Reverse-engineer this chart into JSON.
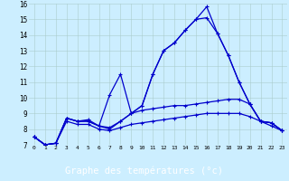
{
  "title": "Graphe des températures (°c)",
  "hours": [
    0,
    1,
    2,
    3,
    4,
    5,
    6,
    7,
    8,
    9,
    10,
    11,
    12,
    13,
    14,
    15,
    16,
    17,
    18,
    19,
    20,
    21,
    22,
    23
  ],
  "curve1": [
    7.5,
    7.0,
    7.1,
    8.7,
    8.5,
    8.5,
    8.2,
    10.2,
    11.5,
    9.0,
    9.5,
    11.5,
    13.0,
    13.5,
    14.3,
    15.0,
    15.8,
    14.1,
    12.7,
    11.0,
    9.6,
    8.5,
    8.4,
    7.9
  ],
  "curve2": [
    7.5,
    7.0,
    7.1,
    8.7,
    8.5,
    8.5,
    8.2,
    8.0,
    8.5,
    9.0,
    9.5,
    11.5,
    13.0,
    13.5,
    14.3,
    15.0,
    15.1,
    14.1,
    12.7,
    11.0,
    9.6,
    8.5,
    8.4,
    7.9
  ],
  "curve3": [
    7.5,
    7.0,
    7.1,
    8.7,
    8.5,
    8.6,
    8.2,
    8.1,
    8.5,
    9.0,
    9.2,
    9.3,
    9.4,
    9.5,
    9.5,
    9.6,
    9.7,
    9.8,
    9.9,
    9.9,
    9.6,
    8.5,
    8.4,
    7.9
  ],
  "curve4": [
    7.5,
    7.0,
    7.1,
    8.5,
    8.3,
    8.3,
    8.0,
    7.9,
    8.1,
    8.3,
    8.4,
    8.5,
    8.6,
    8.7,
    8.8,
    8.9,
    9.0,
    9.0,
    9.0,
    9.0,
    8.8,
    8.5,
    8.2,
    7.9
  ],
  "ylim": [
    7,
    16
  ],
  "yticks": [
    7,
    8,
    9,
    10,
    11,
    12,
    13,
    14,
    15,
    16
  ],
  "line_color": "#0000cc",
  "bg_color": "#cceeff",
  "grid_color": "#aacccc",
  "xlabel_bg": "#000099",
  "markersize": 3,
  "linewidth": 0.9
}
